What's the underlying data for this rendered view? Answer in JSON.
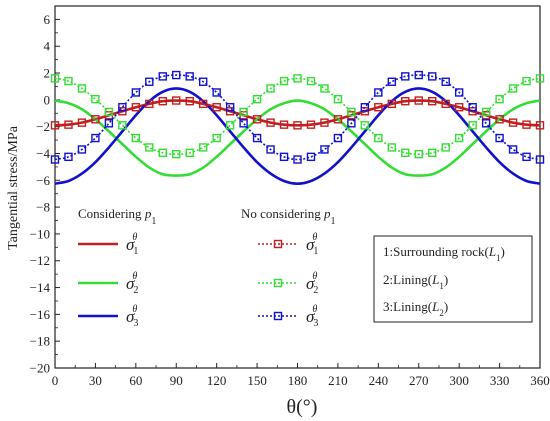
{
  "chart_data": {
    "type": "line",
    "ylabel": "Tangential stress/MPa",
    "xlabel": "θ(°)",
    "xlim": [
      0,
      360
    ],
    "ylim": [
      -20,
      7
    ],
    "x_ticks": [
      0,
      30,
      60,
      90,
      120,
      150,
      180,
      210,
      240,
      270,
      300,
      330,
      360
    ],
    "y_ticks": [
      6,
      4,
      2,
      0,
      -2,
      -4,
      -6,
      -8,
      -10,
      -12,
      -14,
      -16,
      -18,
      -20
    ],
    "x": [
      0,
      10,
      20,
      30,
      40,
      50,
      60,
      70,
      80,
      90,
      100,
      110,
      120,
      130,
      140,
      150,
      160,
      170,
      180,
      190,
      200,
      210,
      220,
      230,
      240,
      250,
      260,
      270,
      280,
      290,
      300,
      310,
      320,
      330,
      340,
      350,
      360
    ],
    "grid": false,
    "legend_groups": {
      "considering": "Considering p",
      "no_considering": "No considering p",
      "subscript": "1"
    },
    "series": [
      {
        "name": "σ1θ",
        "symbol": "σ",
        "sub": "1",
        "sup": "θ",
        "group": "considering",
        "style": "solid",
        "color": "#c21f1f",
        "values": [
          -1.9,
          -1.85,
          -1.7,
          -1.45,
          -1.15,
          -0.85,
          -0.55,
          -0.3,
          -0.1,
          -0.05,
          -0.1,
          -0.3,
          -0.55,
          -0.85,
          -1.15,
          -1.45,
          -1.7,
          -1.85,
          -1.9,
          -1.85,
          -1.7,
          -1.45,
          -1.15,
          -0.85,
          -0.55,
          -0.3,
          -0.1,
          -0.05,
          -0.1,
          -0.3,
          -0.55,
          -0.85,
          -1.15,
          -1.45,
          -1.7,
          -1.85,
          -1.9
        ]
      },
      {
        "name": "σ2θ",
        "symbol": "σ",
        "sub": "2",
        "sup": "θ",
        "group": "considering",
        "style": "solid",
        "color": "#33dd33",
        "values": [
          -0.05,
          -0.25,
          -0.7,
          -1.45,
          -2.35,
          -3.3,
          -4.25,
          -5.05,
          -5.55,
          -5.65,
          -5.55,
          -5.05,
          -4.25,
          -3.3,
          -2.35,
          -1.45,
          -0.7,
          -0.25,
          -0.05,
          -0.25,
          -0.7,
          -1.45,
          -2.35,
          -3.3,
          -4.25,
          -5.05,
          -5.55,
          -5.65,
          -5.55,
          -5.05,
          -4.25,
          -3.3,
          -2.35,
          -1.45,
          -0.7,
          -0.25,
          -0.05
        ]
      },
      {
        "name": "σ3θ",
        "symbol": "σ",
        "sub": "3",
        "sup": "θ",
        "group": "considering",
        "style": "solid",
        "color": "#1111cc",
        "values": [
          -6.25,
          -6.05,
          -5.5,
          -4.65,
          -3.55,
          -2.35,
          -1.15,
          -0.1,
          0.6,
          0.85,
          0.6,
          -0.1,
          -1.15,
          -2.35,
          -3.55,
          -4.65,
          -5.5,
          -6.05,
          -6.25,
          -6.05,
          -5.5,
          -4.65,
          -3.55,
          -2.35,
          -1.15,
          -0.1,
          0.6,
          0.85,
          0.6,
          -0.1,
          -1.15,
          -2.35,
          -3.55,
          -4.65,
          -5.5,
          -6.05,
          -6.25
        ]
      },
      {
        "name": "σ1θ",
        "symbol": "σ",
        "sub": "1",
        "sup": "θ",
        "group": "no_considering",
        "style": "dotted-square",
        "color": "#c21f1f",
        "values": [
          -1.9,
          -1.85,
          -1.7,
          -1.45,
          -1.15,
          -0.85,
          -0.55,
          -0.3,
          -0.1,
          -0.05,
          -0.1,
          -0.3,
          -0.55,
          -0.85,
          -1.15,
          -1.45,
          -1.7,
          -1.85,
          -1.9,
          -1.85,
          -1.7,
          -1.45,
          -1.15,
          -0.85,
          -0.55,
          -0.3,
          -0.1,
          -0.05,
          -0.1,
          -0.3,
          -0.55,
          -0.85,
          -1.15,
          -1.45,
          -1.7,
          -1.85,
          -1.9
        ]
      },
      {
        "name": "σ2θ",
        "symbol": "σ",
        "sub": "2",
        "sup": "θ",
        "group": "no_considering",
        "style": "dotted-square",
        "color": "#33dd33",
        "values": [
          1.6,
          1.4,
          0.85,
          0.05,
          -0.9,
          -1.9,
          -2.85,
          -3.55,
          -3.95,
          -4.05,
          -3.95,
          -3.55,
          -2.85,
          -1.9,
          -0.9,
          0.05,
          0.85,
          1.4,
          1.6,
          1.4,
          0.85,
          0.05,
          -0.9,
          -1.9,
          -2.85,
          -3.55,
          -3.95,
          -4.05,
          -3.95,
          -3.55,
          -2.85,
          -1.9,
          -0.9,
          0.05,
          0.85,
          1.4,
          1.6
        ]
      },
      {
        "name": "σ3θ",
        "symbol": "σ",
        "sub": "3",
        "sup": "θ",
        "group": "no_considering",
        "style": "dotted-square",
        "color": "#1111cc",
        "values": [
          -4.45,
          -4.25,
          -3.7,
          -2.85,
          -1.75,
          -0.55,
          0.55,
          1.35,
          1.75,
          1.85,
          1.75,
          1.35,
          0.55,
          -0.55,
          -1.75,
          -2.85,
          -3.7,
          -4.25,
          -4.45,
          -4.25,
          -3.7,
          -2.85,
          -1.75,
          -0.55,
          0.55,
          1.35,
          1.75,
          1.85,
          1.75,
          1.35,
          0.55,
          -0.55,
          -1.75,
          -2.85,
          -3.7,
          -4.25,
          -4.45
        ]
      }
    ],
    "notes": [
      {
        "number": "1:",
        "text": "Surrounding rock(",
        "var": "L",
        "sub": "1",
        "close": ")"
      },
      {
        "number": "2:",
        "text": "Lining(",
        "var": "L",
        "sub": "1",
        "close": ")"
      },
      {
        "number": "3:",
        "text": "Lining(",
        "var": "L",
        "sub": "2",
        "close": ")"
      }
    ]
  }
}
